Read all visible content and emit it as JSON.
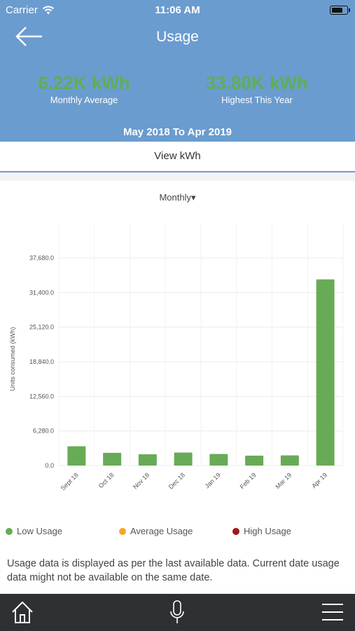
{
  "status_bar": {
    "carrier": "Carrier",
    "time": "11:06 AM",
    "battery_level": 0.7
  },
  "header": {
    "title": "Usage",
    "monthly_average": {
      "value": "6.22K kWh",
      "label": "Monthly Average"
    },
    "highest_this_year": {
      "value": "33.80K kWh",
      "label": "Highest This Year"
    },
    "date_range": "May 2018 To Apr 2019"
  },
  "view_toggle": {
    "label": "View kWh"
  },
  "period_selector": {
    "selected": "Monthly▾"
  },
  "chart_data": {
    "type": "bar",
    "ylabel": "Units consumed (kWh)",
    "xlabel": "",
    "title": "",
    "categories": [
      "Sept 18",
      "Oct 18",
      "Nov 18",
      "Dec 18",
      "Jan 19",
      "Feb 19",
      "Mar 19",
      "Apr 19"
    ],
    "values": [
      3500,
      2300,
      2050,
      2350,
      2100,
      1800,
      1850,
      33800
    ],
    "yticks": [
      0,
      6280,
      12560,
      18840,
      25120,
      31400,
      37680
    ],
    "ytick_labels": [
      "0.0",
      "6,280.0",
      "12,560.0",
      "18,840.0",
      "25,120.0",
      "31,400.0",
      "37,680.0"
    ],
    "ylim": [
      0,
      37680
    ],
    "grid": true,
    "bar_color": "#68ab56"
  },
  "legend": [
    {
      "label": "Low Usage",
      "color": "#68ab56"
    },
    {
      "label": "Average Usage",
      "color": "#f5a623"
    },
    {
      "label": "High Usage",
      "color": "#a01818"
    }
  ],
  "note": "Usage data is displayed as per the last available data. Current date usage data might not be available on the same date.",
  "bottom_nav": {
    "items": [
      "home-icon",
      "microphone-icon",
      "menu-icon"
    ]
  }
}
